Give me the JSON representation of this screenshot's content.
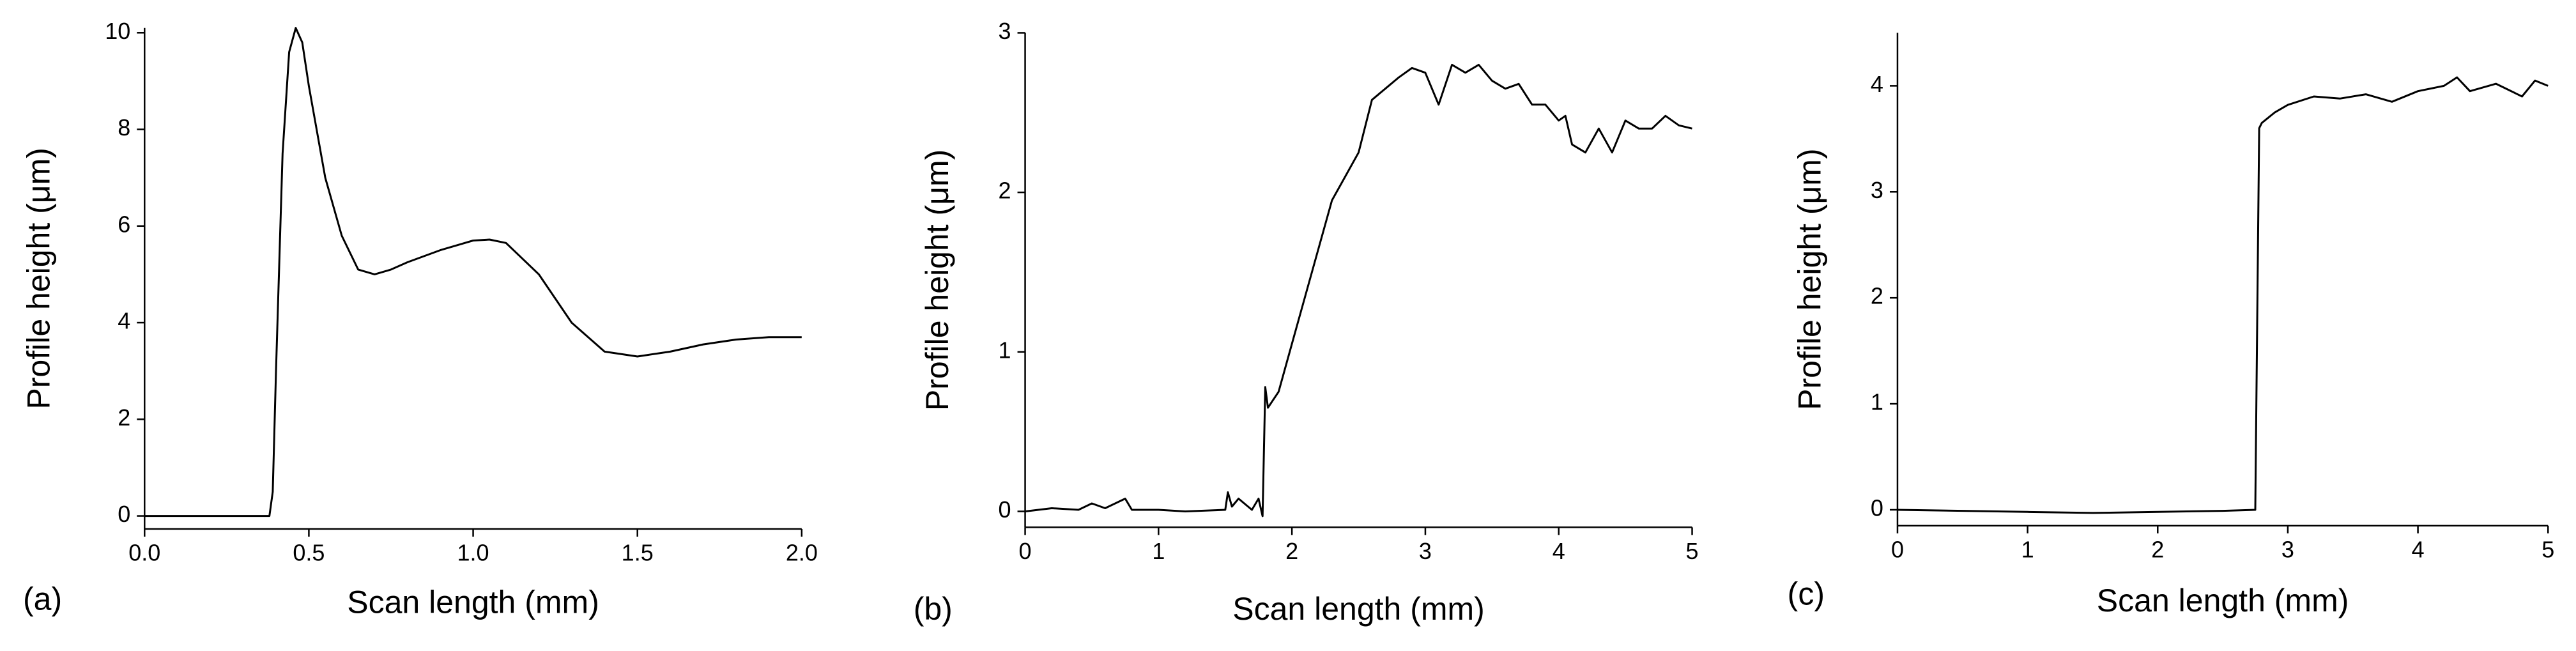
{
  "chart_data": [
    {
      "type": "line",
      "panel_label": "(a)",
      "x_label": "Scan length (mm)",
      "y_label": "Profile height (μm)",
      "xlim": [
        0,
        2.0
      ],
      "xticks": [
        {
          "value": 0,
          "label": "0.0"
        },
        {
          "value": 0.5,
          "label": "0.5"
        },
        {
          "value": 1.0,
          "label": "1.0"
        },
        {
          "value": 1.5,
          "label": "1.5"
        },
        {
          "value": 2.0,
          "label": "2.0"
        }
      ],
      "ylim": [
        -0.27,
        10.1
      ],
      "yticks": [
        0,
        2,
        4,
        6,
        8,
        10
      ],
      "series": [
        {
          "color": "#000000",
          "x": [
            0,
            0.38,
            0.39,
            0.4,
            0.42,
            0.44,
            0.46,
            0.48,
            0.5,
            0.55,
            0.6,
            0.65,
            0.7,
            0.75,
            0.8,
            0.9,
            1.0,
            1.05,
            1.1,
            1.2,
            1.3,
            1.4,
            1.5,
            1.6,
            1.7,
            1.8,
            1.9,
            2.0
          ],
          "values": [
            0,
            0,
            0.5,
            3.0,
            7.5,
            9.6,
            10.1,
            9.8,
            8.9,
            7.0,
            5.8,
            5.1,
            5.0,
            5.1,
            5.25,
            5.5,
            5.7,
            5.72,
            5.65,
            5.0,
            4.0,
            3.4,
            3.3,
            3.4,
            3.55,
            3.65,
            3.7,
            3.7
          ]
        }
      ]
    },
    {
      "type": "line",
      "panel_label": "(b)",
      "x_label": "Scan length (mm)",
      "y_label": "Profile height (μm)",
      "xlim": [
        0,
        5
      ],
      "xticks": [
        0,
        1,
        2,
        3,
        4,
        5
      ],
      "ylim": [
        -0.1,
        3
      ],
      "yticks": [
        0,
        1,
        2,
        3
      ],
      "series": [
        {
          "color": "#000000",
          "x": [
            0,
            0.2,
            0.4,
            0.5,
            0.6,
            0.75,
            0.8,
            1.0,
            1.2,
            1.5,
            1.52,
            1.55,
            1.6,
            1.7,
            1.75,
            1.78,
            1.8,
            1.82,
            1.9,
            2.0,
            2.1,
            2.2,
            2.3,
            2.4,
            2.5,
            2.6,
            2.7,
            2.8,
            2.9,
            3.0,
            3.1,
            3.2,
            3.3,
            3.4,
            3.5,
            3.6,
            3.7,
            3.8,
            3.9,
            4.0,
            4.05,
            4.1,
            4.2,
            4.3,
            4.4,
            4.5,
            4.6,
            4.7,
            4.8,
            4.9,
            5.0
          ],
          "values": [
            0,
            0.02,
            0.01,
            0.05,
            0.02,
            0.08,
            0.01,
            0.01,
            0.0,
            0.01,
            0.12,
            0.03,
            0.08,
            0.01,
            0.08,
            -0.03,
            0.78,
            0.65,
            0.75,
            1.05,
            1.35,
            1.65,
            1.95,
            2.1,
            2.25,
            2.58,
            2.65,
            2.72,
            2.78,
            2.75,
            2.55,
            2.8,
            2.75,
            2.8,
            2.7,
            2.65,
            2.68,
            2.55,
            2.55,
            2.45,
            2.48,
            2.3,
            2.25,
            2.4,
            2.25,
            2.45,
            2.4,
            2.4,
            2.48,
            2.42,
            2.4
          ]
        }
      ]
    },
    {
      "type": "line",
      "panel_label": "(c)",
      "x_label": "Scan length (mm)",
      "y_label": "Profile height (μm)",
      "xlim": [
        0,
        5
      ],
      "xticks": [
        0,
        1,
        2,
        3,
        4,
        5
      ],
      "ylim": [
        -0.15,
        4.5
      ],
      "yticks": [
        0,
        1,
        2,
        3,
        4
      ],
      "series": [
        {
          "color": "#000000",
          "x": [
            0,
            0.5,
            1,
            1.5,
            2,
            2.5,
            2.75,
            2.78,
            2.8,
            2.9,
            3.0,
            3.2,
            3.4,
            3.6,
            3.8,
            4.0,
            4.2,
            4.3,
            4.4,
            4.6,
            4.8,
            4.9,
            5.0
          ],
          "values": [
            0,
            -0.01,
            -0.02,
            -0.03,
            -0.02,
            -0.01,
            0,
            3.6,
            3.65,
            3.75,
            3.82,
            3.9,
            3.88,
            3.92,
            3.85,
            3.95,
            4.0,
            4.08,
            3.95,
            4.02,
            3.9,
            4.05,
            4.0
          ]
        }
      ]
    }
  ]
}
